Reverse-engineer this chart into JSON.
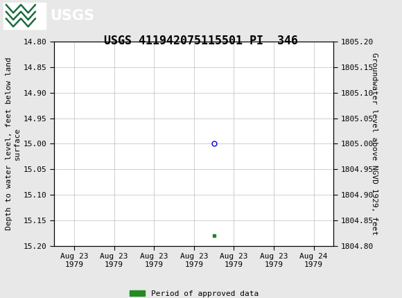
{
  "title": "USGS 411942075115501 PI  346",
  "title_fontsize": 12,
  "background_color": "#e8e8e8",
  "plot_bg_color": "#ffffff",
  "header_color": "#1a6b3c",
  "ylabel_left": "Depth to water level, feet below land\nsurface",
  "ylabel_right": "Groundwater level above NGVD 1929, feet",
  "ylim_left_top": 14.8,
  "ylim_left_bottom": 15.2,
  "ylim_right_top": 1805.2,
  "ylim_right_bottom": 1804.8,
  "yticks_left": [
    14.8,
    14.85,
    14.9,
    14.95,
    15.0,
    15.05,
    15.1,
    15.15,
    15.2
  ],
  "yticks_right": [
    1805.2,
    1805.15,
    1805.1,
    1805.05,
    1805.0,
    1804.95,
    1804.9,
    1804.85,
    1804.8
  ],
  "data_point_x": 3.5,
  "data_point_y": 15.0,
  "data_point_color": "#0000cc",
  "data_point_marker": "o",
  "data_point_marker_size": 5,
  "green_point_x": 3.5,
  "green_point_y": 15.18,
  "green_point_color": "#228b22",
  "green_point_marker": "s",
  "green_point_marker_size": 3,
  "grid_color": "#c8c8c8",
  "tick_label_fontsize": 8,
  "axis_label_fontsize": 8,
  "xtick_labels": [
    "Aug 23\n1979",
    "Aug 23\n1979",
    "Aug 23\n1979",
    "Aug 23\n1979",
    "Aug 23\n1979",
    "Aug 23\n1979",
    "Aug 24\n1979"
  ],
  "xtick_positions": [
    0,
    1,
    2,
    3,
    4,
    5,
    6
  ],
  "legend_label": "Period of approved data",
  "legend_color": "#228b22"
}
